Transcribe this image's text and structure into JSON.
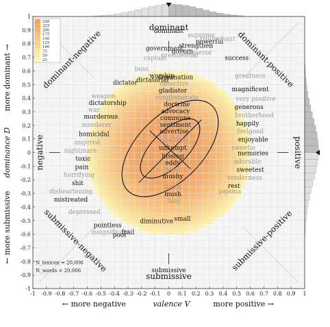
{
  "chart_data": {
    "type": "heatmap",
    "xlim": [
      -1,
      1
    ],
    "ylim": [
      -1,
      1
    ],
    "x_ticks": [
      "-1",
      "-0.9",
      "-0.8",
      "-0.7",
      "-0.6",
      "-0.5",
      "-0.4",
      "-0.3",
      "-0.2",
      "-0.1",
      "0",
      "0.1",
      "0.2",
      "0.3",
      "0.4",
      "0.5",
      "0.6",
      "0.7",
      "0.8",
      "0.9",
      "1"
    ],
    "y_ticks": [
      "-1",
      "-0.9",
      "-0.8",
      "-0.7",
      "-0.6",
      "-0.5",
      "-0.4",
      "-0.3",
      "-0.2",
      "-0.1",
      "0",
      "0.1",
      "0.2",
      "0.3",
      "0.4",
      "0.5",
      "0.6",
      "0.7",
      "0.8",
      "0.9",
      "1"
    ],
    "xlabel": "valence V",
    "x_left_label": "← more negative",
    "x_right_label": "more positive →",
    "ylabel": "dominance D",
    "y_top_label": "more dominant →",
    "y_bottom_label": "← more submissive",
    "directions": {
      "top": "dominant",
      "bottom": "submissive",
      "left": "negative",
      "right": "positive",
      "top_left": "dominant-negative",
      "top_right": "dominant-positive",
      "bottom_left": "submissive-negative",
      "bottom_right": "submissive-positive"
    },
    "colorbar_ticks": [
      "250",
      "225",
      "200",
      "175",
      "150",
      "125",
      "100",
      "75",
      "50",
      "25"
    ],
    "counts": [
      "N_lexicon = 20,006",
      "N_words = 20,006"
    ],
    "grid": true,
    "words": [
      {
        "t": "warship",
        "v": -0.05,
        "d": 0.55,
        "c": "#111"
      },
      {
        "t": "dictatorial",
        "v": -0.12,
        "d": 0.52,
        "c": "#111"
      },
      {
        "t": "dictator",
        "v": -0.32,
        "d": 0.5,
        "c": "#111"
      },
      {
        "t": "weapon",
        "v": -0.48,
        "d": 0.4,
        "c": "#999"
      },
      {
        "t": "dictatorship",
        "v": -0.45,
        "d": 0.35,
        "c": "#111"
      },
      {
        "t": "war",
        "v": -0.55,
        "d": 0.3,
        "c": "#999"
      },
      {
        "t": "murderous",
        "v": -0.5,
        "d": 0.25,
        "c": "#111"
      },
      {
        "t": "murderer",
        "v": -0.53,
        "d": 0.19,
        "c": "#999"
      },
      {
        "t": "homicidal",
        "v": -0.55,
        "d": 0.12,
        "c": "#111"
      },
      {
        "t": "angered",
        "v": -0.6,
        "d": 0.06,
        "c": "#999"
      },
      {
        "t": "nightmare",
        "v": -0.65,
        "d": 0.0,
        "c": "#999"
      },
      {
        "t": "toxic",
        "v": -0.63,
        "d": -0.06,
        "c": "#111"
      },
      {
        "t": "pain",
        "v": -0.64,
        "d": -0.12,
        "c": "#111"
      },
      {
        "t": "horrifying",
        "v": -0.66,
        "d": -0.18,
        "c": "#999"
      },
      {
        "t": "shit",
        "v": -0.67,
        "d": -0.24,
        "c": "#111"
      },
      {
        "t": "disheartening",
        "v": -0.72,
        "d": -0.3,
        "c": "#999"
      },
      {
        "t": "mistreated",
        "v": -0.72,
        "d": -0.36,
        "c": "#111"
      },
      {
        "t": "depressed",
        "v": -0.62,
        "d": -0.45,
        "c": "#999"
      },
      {
        "t": "pointless",
        "v": -0.45,
        "d": -0.55,
        "c": "#111"
      },
      {
        "t": "insignificant",
        "v": -0.43,
        "d": -0.6,
        "c": "#999"
      },
      {
        "t": "poor",
        "v": -0.36,
        "d": -0.62,
        "c": "#111"
      },
      {
        "t": "frail",
        "v": -0.3,
        "d": -0.6,
        "c": "#111"
      },
      {
        "t": "dominant",
        "v": 0.0,
        "d": 0.88,
        "c": "#111"
      },
      {
        "t": "government",
        "v": -0.03,
        "d": 0.75,
        "c": "#111"
      },
      {
        "t": "govern",
        "v": 0.1,
        "d": 0.73,
        "c": "#111"
      },
      {
        "t": "strengthen",
        "v": 0.2,
        "d": 0.77,
        "c": "#111"
      },
      {
        "t": "powerful",
        "v": 0.3,
        "d": 0.8,
        "c": "#111"
      },
      {
        "t": "supreme",
        "v": 0.24,
        "d": 0.85,
        "c": "#999"
      },
      {
        "t": "triumphant",
        "v": 0.36,
        "d": 0.82,
        "c": "#999"
      },
      {
        "t": "conqueror",
        "v": 0.2,
        "d": 0.72,
        "c": "#999"
      },
      {
        "t": "presidential",
        "v": 0.08,
        "d": 0.7,
        "c": "#999"
      },
      {
        "t": "captain",
        "v": -0.1,
        "d": 0.68,
        "c": "#999"
      },
      {
        "t": "boss",
        "v": -0.2,
        "d": 0.6,
        "c": "#999"
      },
      {
        "t": "success",
        "v": 0.5,
        "d": 0.68,
        "c": "#111"
      },
      {
        "t": "greatness",
        "v": 0.6,
        "d": 0.55,
        "c": "#999"
      },
      {
        "t": "magnificent",
        "v": 0.6,
        "d": 0.45,
        "c": "#111"
      },
      {
        "t": "very positive",
        "v": 0.64,
        "d": 0.38,
        "c": "#999"
      },
      {
        "t": "generous",
        "v": 0.59,
        "d": 0.32,
        "c": "#111"
      },
      {
        "t": "brotherhood",
        "v": 0.63,
        "d": 0.26,
        "c": "#999"
      },
      {
        "t": "happily",
        "v": 0.58,
        "d": 0.2,
        "c": "#111"
      },
      {
        "t": "feelgood",
        "v": 0.6,
        "d": 0.14,
        "c": "#999"
      },
      {
        "t": "enjoyable",
        "v": 0.62,
        "d": 0.08,
        "c": "#111"
      },
      {
        "t": "sweetie",
        "v": 0.55,
        "d": 0.02,
        "c": "#999"
      },
      {
        "t": "memories",
        "v": 0.62,
        "d": -0.02,
        "c": "#111"
      },
      {
        "t": "adorable",
        "v": 0.58,
        "d": -0.08,
        "c": "#999"
      },
      {
        "t": "sweetest",
        "v": 0.6,
        "d": -0.14,
        "c": "#111"
      },
      {
        "t": "tenderness",
        "v": 0.56,
        "d": -0.2,
        "c": "#999"
      },
      {
        "t": "rest",
        "v": 0.48,
        "d": -0.26,
        "c": "#111"
      },
      {
        "t": "pajama",
        "v": 0.45,
        "d": -0.3,
        "c": "#999"
      },
      {
        "t": "domination",
        "v": 0.05,
        "d": 0.54,
        "c": "#111"
      },
      {
        "t": "detective",
        "v": 0.04,
        "d": 0.49,
        "c": "#999"
      },
      {
        "t": "gladiator",
        "v": 0.03,
        "d": 0.44,
        "c": "#111"
      },
      {
        "t": "conglomerate",
        "v": 0.06,
        "d": 0.39,
        "c": "#999"
      },
      {
        "t": "doctrine",
        "v": 0.06,
        "d": 0.34,
        "c": "#111"
      },
      {
        "t": "advocacy",
        "v": 0.05,
        "d": 0.29,
        "c": "#111"
      },
      {
        "t": "commune",
        "v": 0.05,
        "d": 0.24,
        "c": "#111"
      },
      {
        "t": "sentiment",
        "v": 0.05,
        "d": 0.19,
        "c": "#111"
      },
      {
        "t": "advertise",
        "v": 0.04,
        "d": 0.14,
        "c": "#111"
      },
      {
        "t": "albatross",
        "v": 0.03,
        "d": 0.08,
        "c": "#999"
      },
      {
        "t": "unkempt",
        "v": 0.03,
        "d": 0.02,
        "c": "#111"
      },
      {
        "t": "hissing",
        "v": 0.03,
        "d": -0.04,
        "c": "#111"
      },
      {
        "t": "eddy",
        "v": 0.03,
        "d": -0.09,
        "c": "#111"
      },
      {
        "t": "tyke",
        "v": 0.02,
        "d": -0.14,
        "c": "#999"
      },
      {
        "t": "mushy",
        "v": 0.03,
        "d": -0.19,
        "c": "#111"
      },
      {
        "t": "broth",
        "v": 0.03,
        "d": -0.27,
        "c": "#999"
      },
      {
        "t": "mush",
        "v": 0.03,
        "d": -0.32,
        "c": "#111"
      },
      {
        "t": "lazy",
        "v": 0.04,
        "d": -0.37,
        "c": "#999"
      },
      {
        "t": "small",
        "v": 0.1,
        "d": -0.5,
        "c": "#111"
      },
      {
        "t": "diminutive",
        "v": -0.09,
        "d": -0.52,
        "c": "#111"
      },
      {
        "t": "submissive",
        "v": 0.0,
        "d": -0.88,
        "c": "#111"
      }
    ]
  },
  "colors": {
    "heat_low": "#fdf7b3",
    "heat_high": "#f4a460",
    "grid": "#d9d9d9",
    "frame": "#333333"
  }
}
